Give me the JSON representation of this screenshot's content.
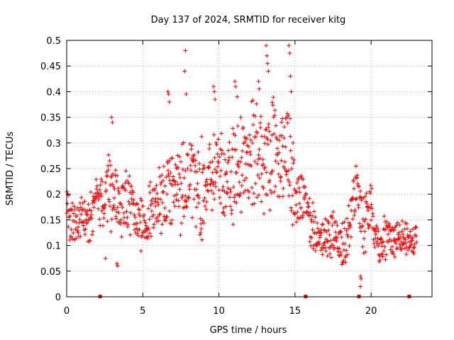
{
  "chart_data": {
    "type": "scatter",
    "title": "Day 137 of 2024, SRMTID for receiver kitg",
    "xlabel": "GPS time / hours",
    "ylabel": "SRMTID / TECUs",
    "xlim": [
      0,
      24
    ],
    "ylim": [
      0,
      0.5
    ],
    "xticks": [
      "0",
      "5",
      "10",
      "15",
      "20"
    ],
    "yticks": [
      "0",
      "0.05",
      "0.1",
      "0.15",
      "0.2",
      "0.25",
      "0.3",
      "0.35",
      "0.4",
      "0.45",
      "0.5"
    ],
    "grid": true,
    "marker": "+",
    "color": "#ff0000",
    "gap_markers_x": [
      2.2,
      15.7,
      19.2,
      22.5
    ],
    "series": [
      {
        "values_envelope": [
          {
            "x": 0.0,
            "y": 0.17
          },
          {
            "x": 0.5,
            "y": 0.14
          },
          {
            "x": 1.0,
            "y": 0.16
          },
          {
            "x": 1.5,
            "y": 0.15
          },
          {
            "x": 2.0,
            "y": 0.2
          },
          {
            "x": 2.5,
            "y": 0.17
          },
          {
            "x": 3.0,
            "y": 0.22
          },
          {
            "x": 3.5,
            "y": 0.18
          },
          {
            "x": 4.0,
            "y": 0.19
          },
          {
            "x": 4.5,
            "y": 0.15
          },
          {
            "x": 5.0,
            "y": 0.14
          },
          {
            "x": 5.5,
            "y": 0.17
          },
          {
            "x": 6.0,
            "y": 0.19
          },
          {
            "x": 6.5,
            "y": 0.2
          },
          {
            "x": 7.0,
            "y": 0.21
          },
          {
            "x": 7.5,
            "y": 0.22
          },
          {
            "x": 8.0,
            "y": 0.24
          },
          {
            "x": 8.5,
            "y": 0.2
          },
          {
            "x": 9.0,
            "y": 0.21
          },
          {
            "x": 9.5,
            "y": 0.25
          },
          {
            "x": 10.0,
            "y": 0.26
          },
          {
            "x": 10.5,
            "y": 0.22
          },
          {
            "x": 11.0,
            "y": 0.24
          },
          {
            "x": 11.5,
            "y": 0.27
          },
          {
            "x": 12.0,
            "y": 0.26
          },
          {
            "x": 12.5,
            "y": 0.28
          },
          {
            "x": 13.0,
            "y": 0.25
          },
          {
            "x": 13.5,
            "y": 0.27
          },
          {
            "x": 14.0,
            "y": 0.26
          },
          {
            "x": 14.5,
            "y": 0.29
          },
          {
            "x": 15.0,
            "y": 0.2
          },
          {
            "x": 15.5,
            "y": 0.19
          },
          {
            "x": 16.0,
            "y": 0.14
          },
          {
            "x": 16.5,
            "y": 0.12
          },
          {
            "x": 17.0,
            "y": 0.11
          },
          {
            "x": 17.5,
            "y": 0.12
          },
          {
            "x": 18.0,
            "y": 0.1
          },
          {
            "x": 18.5,
            "y": 0.13
          },
          {
            "x": 19.0,
            "y": 0.22
          },
          {
            "x": 19.5,
            "y": 0.14
          },
          {
            "x": 20.0,
            "y": 0.18
          },
          {
            "x": 20.5,
            "y": 0.1
          },
          {
            "x": 21.0,
            "y": 0.12
          },
          {
            "x": 21.5,
            "y": 0.11
          },
          {
            "x": 22.0,
            "y": 0.12
          },
          {
            "x": 22.5,
            "y": 0.11
          },
          {
            "x": 23.0,
            "y": 0.11
          }
        ],
        "spread_envelope": [
          {
            "x": 0.0,
            "s": 0.04
          },
          {
            "x": 2.0,
            "s": 0.05
          },
          {
            "x": 3.0,
            "s": 0.08
          },
          {
            "x": 5.0,
            "s": 0.05
          },
          {
            "x": 7.0,
            "s": 0.08
          },
          {
            "x": 8.0,
            "s": 0.09
          },
          {
            "x": 10.0,
            "s": 0.09
          },
          {
            "x": 12.5,
            "s": 0.11
          },
          {
            "x": 14.5,
            "s": 0.1
          },
          {
            "x": 15.5,
            "s": 0.06
          },
          {
            "x": 16.5,
            "s": 0.04
          },
          {
            "x": 18.5,
            "s": 0.05
          },
          {
            "x": 19.5,
            "s": 0.06
          },
          {
            "x": 21.0,
            "s": 0.04
          },
          {
            "x": 23.0,
            "s": 0.03
          }
        ],
        "outliers": [
          {
            "x": 7.8,
            "y": 0.48
          },
          {
            "x": 7.75,
            "y": 0.44
          },
          {
            "x": 7.85,
            "y": 0.395
          },
          {
            "x": 13.1,
            "y": 0.49
          },
          {
            "x": 13.15,
            "y": 0.47
          },
          {
            "x": 13.2,
            "y": 0.455
          },
          {
            "x": 13.25,
            "y": 0.44
          },
          {
            "x": 14.6,
            "y": 0.49
          },
          {
            "x": 14.65,
            "y": 0.475
          },
          {
            "x": 14.7,
            "y": 0.43
          },
          {
            "x": 14.75,
            "y": 0.4
          },
          {
            "x": 11.05,
            "y": 0.42
          },
          {
            "x": 11.1,
            "y": 0.41
          },
          {
            "x": 11.2,
            "y": 0.39
          },
          {
            "x": 9.65,
            "y": 0.41
          },
          {
            "x": 9.7,
            "y": 0.4
          },
          {
            "x": 9.75,
            "y": 0.385
          },
          {
            "x": 6.65,
            "y": 0.4
          },
          {
            "x": 6.7,
            "y": 0.395
          },
          {
            "x": 6.75,
            "y": 0.38
          },
          {
            "x": 2.95,
            "y": 0.35
          },
          {
            "x": 3.0,
            "y": 0.34
          },
          {
            "x": 19.3,
            "y": 0.04
          },
          {
            "x": 19.35,
            "y": 0.035
          },
          {
            "x": 19.3,
            "y": 0.02
          },
          {
            "x": 3.3,
            "y": 0.065
          },
          {
            "x": 3.35,
            "y": 0.06
          },
          {
            "x": 2.55,
            "y": 0.075
          },
          {
            "x": 12.6,
            "y": 0.42
          },
          {
            "x": 12.65,
            "y": 0.405
          }
        ]
      }
    ]
  }
}
